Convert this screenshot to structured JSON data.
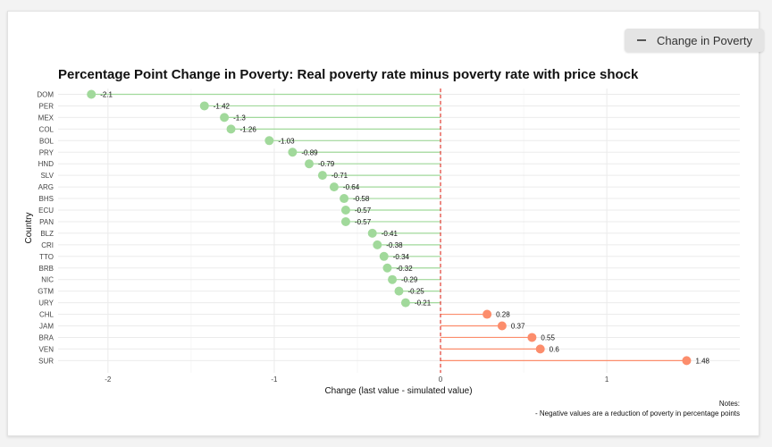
{
  "legend": {
    "label": "Change in Poverty"
  },
  "notes": {
    "heading": "Notes:",
    "line1": "- Negative values are a reduction of poverty in percentage points"
  },
  "colors": {
    "negative_point": "#a1d99b",
    "negative_line": "#a1d99b",
    "positive_point": "#fc8d6c",
    "positive_line": "#fc8d6c",
    "zero_line": "#e03c31",
    "grid": "#ebebeb"
  },
  "chart_data": {
    "type": "lollipop",
    "title": "Percentage Point Change in Poverty: Real poverty rate minus poverty rate with price shock",
    "xlabel": "Change (last value - simulated value)",
    "ylabel": "Country",
    "xlim": [
      -2.3,
      1.8
    ],
    "xticks": [
      -2,
      -1,
      0,
      1
    ],
    "xtick_labels": [
      "-2",
      "-1",
      "0",
      "1"
    ],
    "zero_reference": "dashed vertical line at 0",
    "grid": true,
    "categories": [
      "DOM",
      "PER",
      "MEX",
      "COL",
      "BOL",
      "PRY",
      "HND",
      "SLV",
      "ARG",
      "BHS",
      "ECU",
      "PAN",
      "BLZ",
      "CRI",
      "TTO",
      "BRB",
      "NIC",
      "GTM",
      "URY",
      "CHL",
      "JAM",
      "BRA",
      "VEN",
      "SUR"
    ],
    "values": [
      -2.1,
      -1.42,
      -1.3,
      -1.26,
      -1.03,
      -0.89,
      -0.79,
      -0.71,
      -0.64,
      -0.58,
      -0.57,
      -0.57,
      -0.41,
      -0.38,
      -0.34,
      -0.32,
      -0.29,
      -0.25,
      -0.21,
      0.28,
      0.37,
      0.55,
      0.6,
      1.48
    ],
    "value_labels": [
      "-2.1",
      "-1.42",
      "-1.3",
      "-1.26",
      "-1.03",
      "-0.89",
      "-0.79",
      "-0.71",
      "-0.64",
      "-0.58",
      "-0.57",
      "-0.57",
      "-0.41",
      "-0.38",
      "-0.34",
      "-0.32",
      "-0.29",
      "-0.25",
      "-0.21",
      "0.28",
      "0.37",
      "0.55",
      "0.6",
      "1.48"
    ]
  }
}
